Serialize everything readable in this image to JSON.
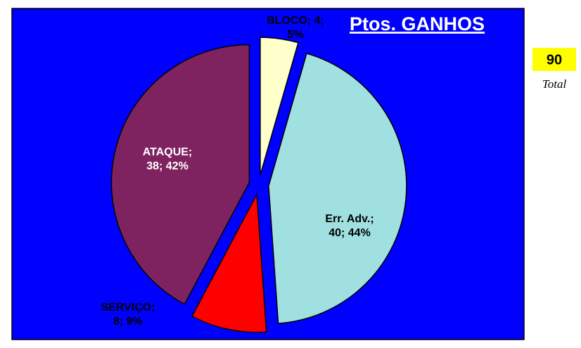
{
  "chart_data": {
    "type": "pie",
    "title": "Ptos. GANHOS",
    "categories": [
      "BLOCO",
      "Err. Adv.",
      "SERVIÇO",
      "ATAQUE"
    ],
    "values": [
      4,
      40,
      8,
      38
    ],
    "value_labels": [
      [
        "BLOCO; 4;",
        "5%"
      ],
      [
        "Err. Adv.;",
        "40; 44%"
      ],
      [
        "SERVIÇO;",
        "8; 9%"
      ],
      [
        "ATAQUE;",
        "38; 42%"
      ]
    ],
    "colors": [
      "#ffffcc",
      "#a0e0e0",
      "#ff0000",
      "#7f2360"
    ],
    "background": "#0000ff",
    "total": 90,
    "total_label": "Total"
  }
}
